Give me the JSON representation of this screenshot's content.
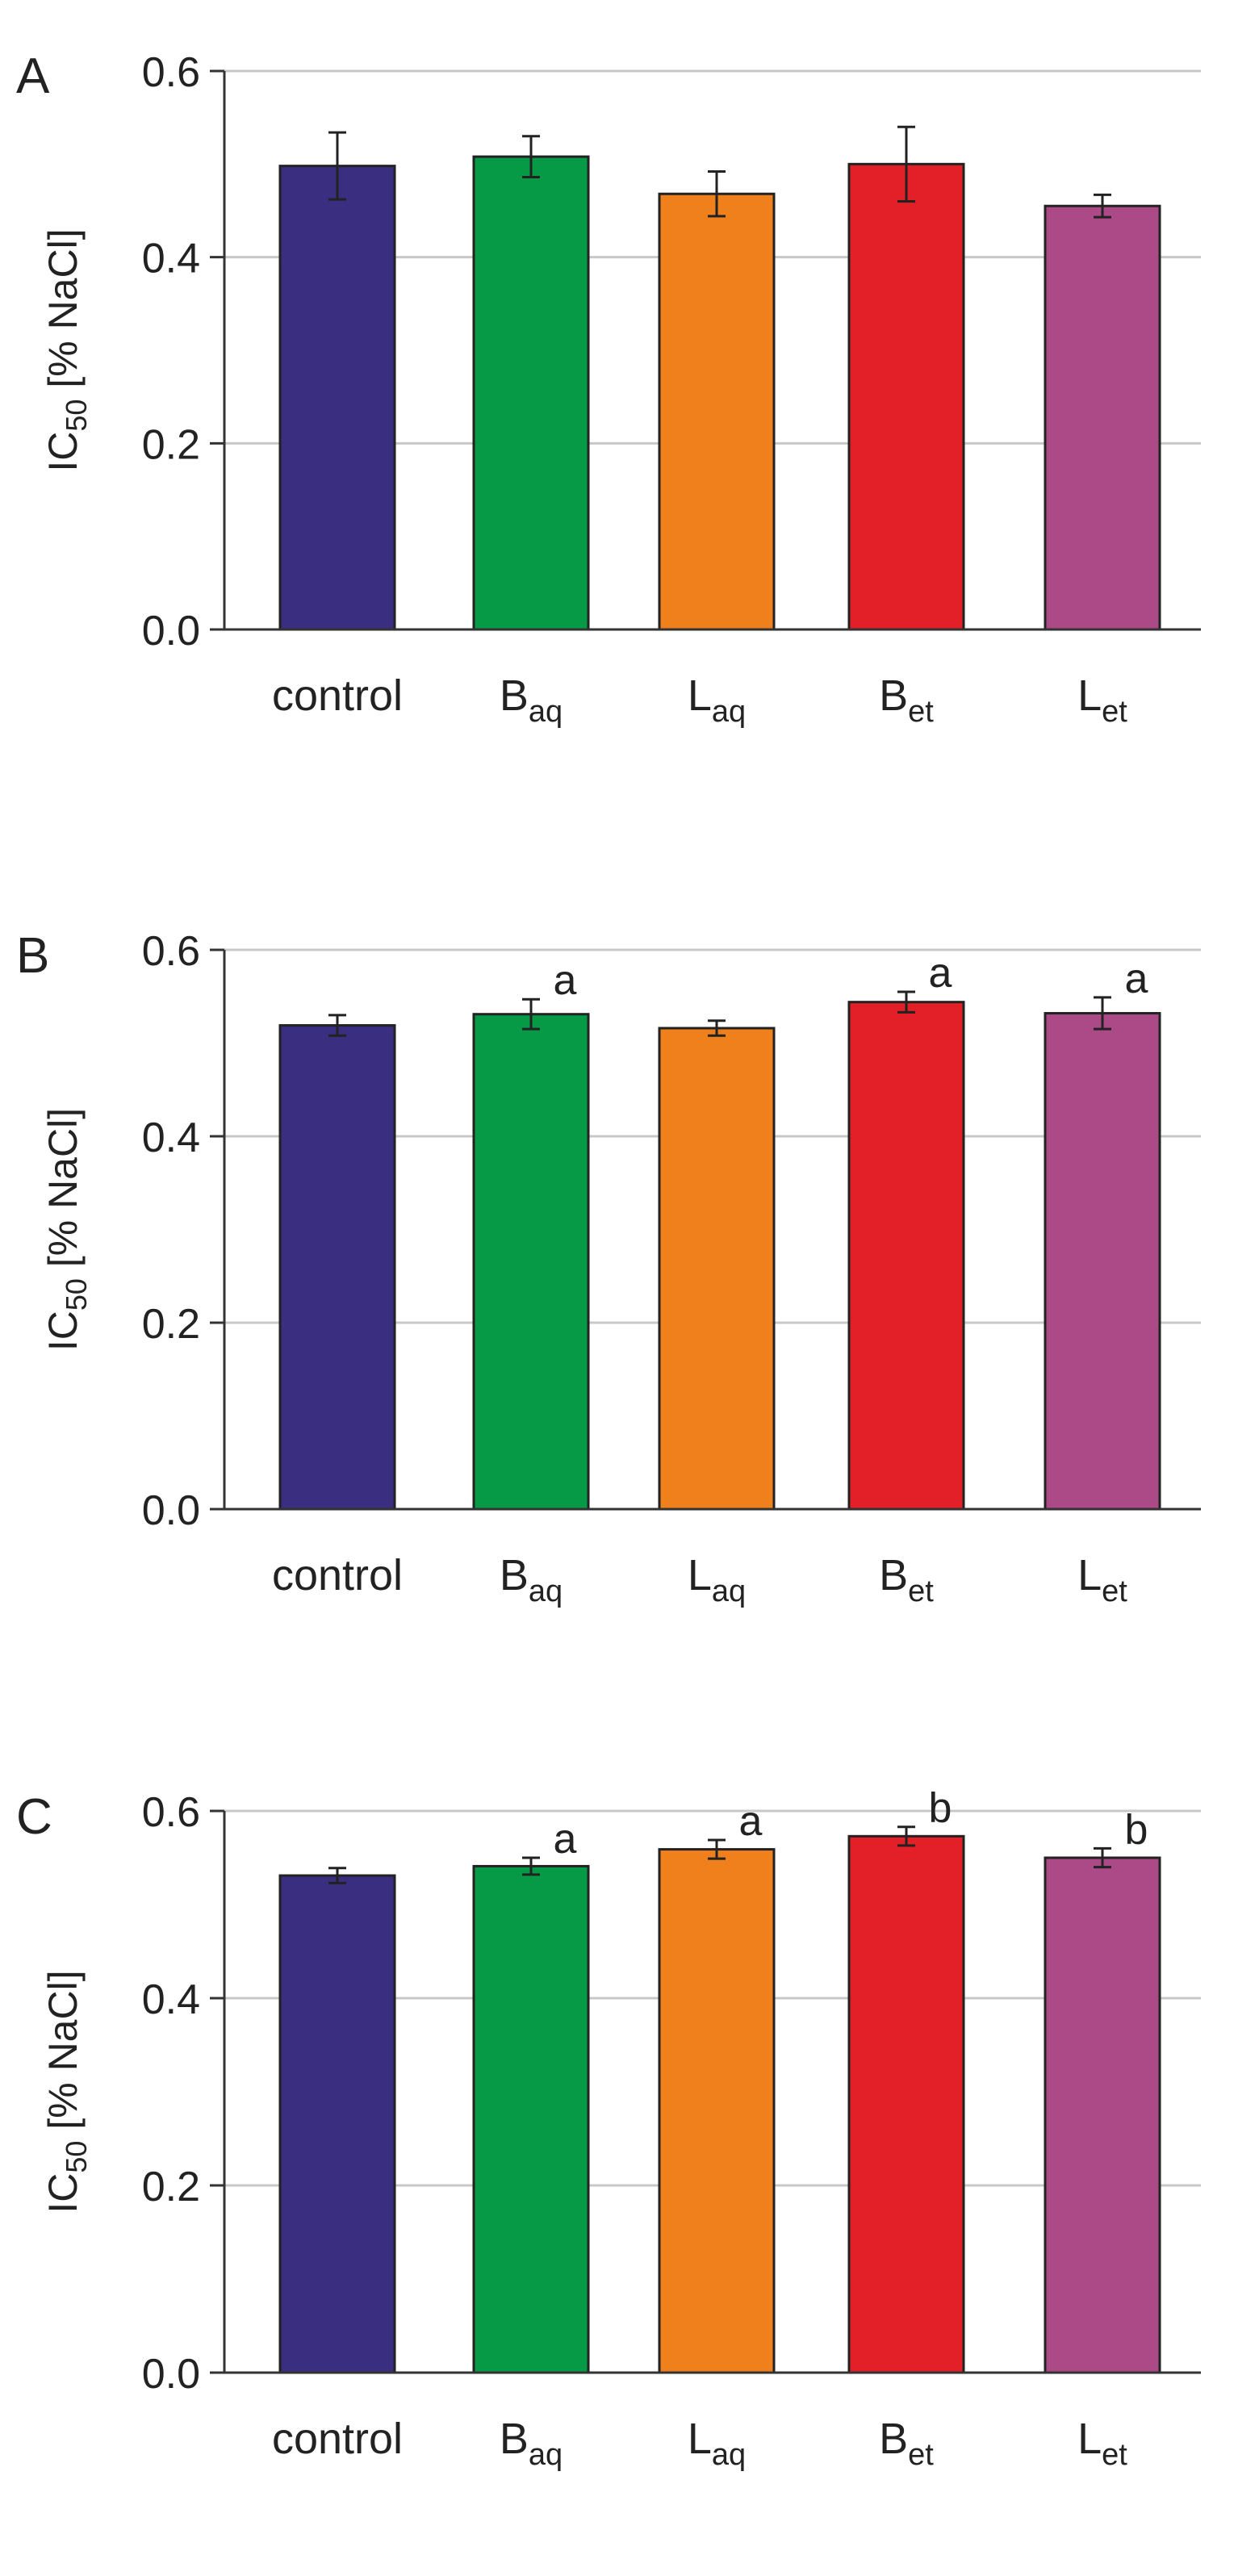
{
  "colors": {
    "control": "#3a2e80",
    "B_aq": "#069a46",
    "L_aq": "#f0801c",
    "B_et": "#e32027",
    "L_et": "#ab4a86",
    "grid": "#c8c8c8",
    "axis": "#333333",
    "outline": "#222222"
  },
  "chart_data": [
    {
      "type": "bar",
      "panel_label": "A",
      "ylabel": {
        "base": "IC",
        "sub": "50",
        "rest": " [% NaCl]"
      },
      "ylim": [
        0,
        0.6
      ],
      "yticks": [
        "0.0",
        "0.2",
        "0.4",
        "0.6"
      ],
      "categories": [
        {
          "base": "control",
          "sub": ""
        },
        {
          "base": "B",
          "sub": "aq"
        },
        {
          "base": "L",
          "sub": "aq"
        },
        {
          "base": "B",
          "sub": "et"
        },
        {
          "base": "L",
          "sub": "et"
        }
      ],
      "values": [
        0.498,
        0.508,
        0.468,
        0.5,
        0.455
      ],
      "errors": [
        0.036,
        0.022,
        0.024,
        0.04,
        0.012
      ],
      "annotations": [
        "",
        "",
        "",
        "",
        ""
      ]
    },
    {
      "type": "bar",
      "panel_label": "B",
      "ylabel": {
        "base": "IC",
        "sub": "50",
        "rest": " [% NaCl]"
      },
      "ylim": [
        0,
        0.6
      ],
      "yticks": [
        "0.0",
        "0.2",
        "0.4",
        "0.6"
      ],
      "categories": [
        {
          "base": "control",
          "sub": ""
        },
        {
          "base": "B",
          "sub": "aq"
        },
        {
          "base": "L",
          "sub": "aq"
        },
        {
          "base": "B",
          "sub": "et"
        },
        {
          "base": "L",
          "sub": "et"
        }
      ],
      "values": [
        0.519,
        0.531,
        0.516,
        0.544,
        0.532
      ],
      "errors": [
        0.011,
        0.016,
        0.008,
        0.011,
        0.017
      ],
      "annotations": [
        "",
        "a",
        "",
        "a",
        "a"
      ]
    },
    {
      "type": "bar",
      "panel_label": "C",
      "ylabel": {
        "base": "IC",
        "sub": "50",
        "rest": " [% NaCl]"
      },
      "ylim": [
        0,
        0.6
      ],
      "yticks": [
        "0.0",
        "0.2",
        "0.4",
        "0.6"
      ],
      "categories": [
        {
          "base": "control",
          "sub": ""
        },
        {
          "base": "B",
          "sub": "aq"
        },
        {
          "base": "L",
          "sub": "aq"
        },
        {
          "base": "B",
          "sub": "et"
        },
        {
          "base": "L",
          "sub": "et"
        }
      ],
      "values": [
        0.531,
        0.541,
        0.559,
        0.573,
        0.55
      ],
      "errors": [
        0.008,
        0.009,
        0.01,
        0.01,
        0.01
      ],
      "annotations": [
        "",
        "a",
        "a",
        "b",
        "b"
      ]
    }
  ]
}
